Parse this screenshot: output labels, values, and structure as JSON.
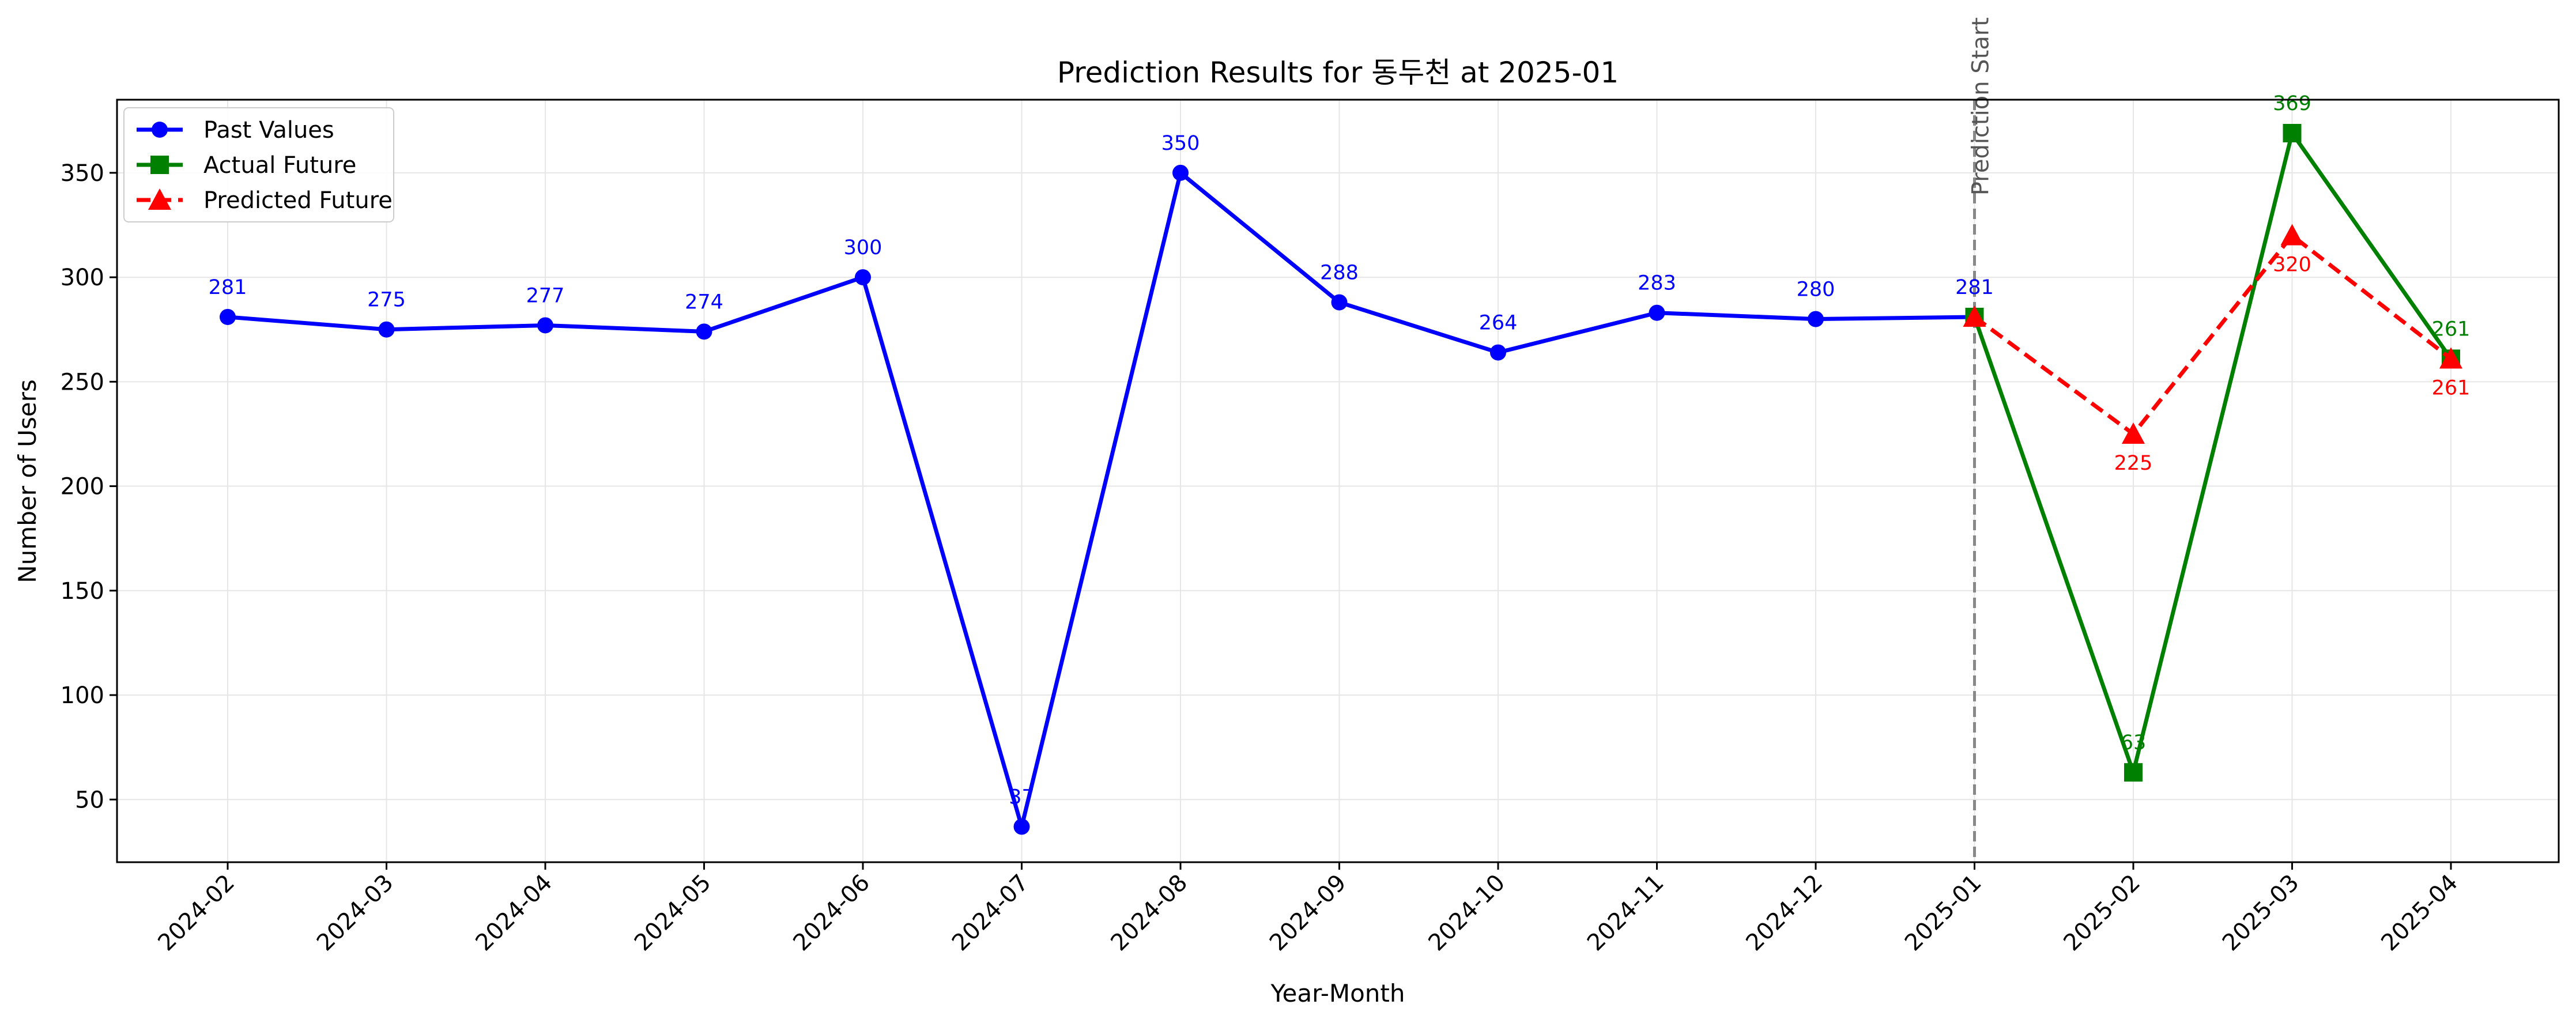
{
  "chart_data": {
    "type": "line",
    "title": "Prediction Results for 동두천 at 2025-01",
    "xlabel": "Year-Month",
    "ylabel": "Number of Users",
    "categories": [
      "2024-02",
      "2024-03",
      "2024-04",
      "2024-05",
      "2024-06",
      "2024-07",
      "2024-08",
      "2024-09",
      "2024-10",
      "2024-11",
      "2024-12",
      "2025-01",
      "2025-02",
      "2025-03",
      "2025-04"
    ],
    "ylim": [
      20,
      385
    ],
    "yticks": [
      50,
      100,
      150,
      200,
      250,
      300,
      350
    ],
    "grid": true,
    "legend_position": "top-left",
    "prediction_marker": {
      "category": "2025-01",
      "label": "Prediction Start"
    },
    "series": [
      {
        "name": "Past Values",
        "color": "#0000ff",
        "marker": "circle",
        "line_style": "solid",
        "label_position": "above",
        "x": [
          "2024-02",
          "2024-03",
          "2024-04",
          "2024-05",
          "2024-06",
          "2024-07",
          "2024-08",
          "2024-09",
          "2024-10",
          "2024-11",
          "2024-12",
          "2025-01"
        ],
        "values": [
          281,
          275,
          277,
          274,
          300,
          37,
          350,
          288,
          264,
          283,
          280,
          281
        ]
      },
      {
        "name": "Actual Future",
        "color": "#008000",
        "marker": "square",
        "line_style": "solid",
        "label_position": "above",
        "x": [
          "2025-01",
          "2025-02",
          "2025-03",
          "2025-04"
        ],
        "values": [
          281,
          63,
          369,
          261
        ],
        "labeled_points": [
          "2025-02",
          "2025-03",
          "2025-04"
        ]
      },
      {
        "name": "Predicted Future",
        "color": "#ff0000",
        "marker": "triangle",
        "line_style": "dashed",
        "label_position": "below",
        "x": [
          "2025-01",
          "2025-02",
          "2025-03",
          "2025-04"
        ],
        "values": [
          281,
          225,
          320,
          261
        ],
        "labeled_points": [
          "2025-02",
          "2025-03",
          "2025-04"
        ]
      }
    ]
  }
}
